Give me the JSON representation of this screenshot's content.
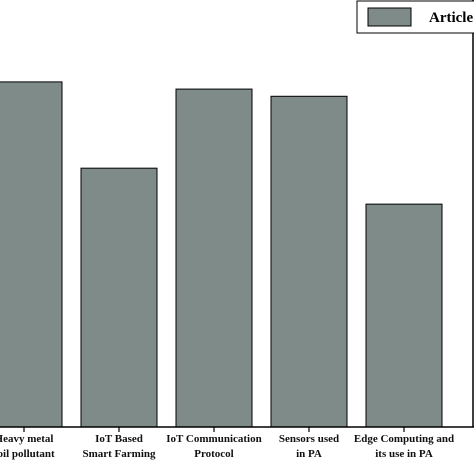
{
  "colors": {
    "bar_fill": "#7f8b88",
    "bar_stroke": "#000000",
    "axis": "#000000"
  },
  "legend": {
    "label": "Article"
  },
  "chart_data": {
    "type": "bar",
    "categories": [
      [
        "Heavy metal",
        "soil pollutant"
      ],
      [
        "IoT Based",
        "Smart Farming"
      ],
      [
        "IoT Communication",
        "Protocol"
      ],
      [
        "Sensors used",
        "in PA"
      ],
      [
        "Edge Computing and",
        "its use in PA"
      ]
    ],
    "series": [
      {
        "name": "Article",
        "values": [
          48,
          36,
          47,
          46,
          31
        ]
      }
    ],
    "ylim": [
      0,
      58
    ],
    "legend_position": "top-right",
    "grid": false
  }
}
